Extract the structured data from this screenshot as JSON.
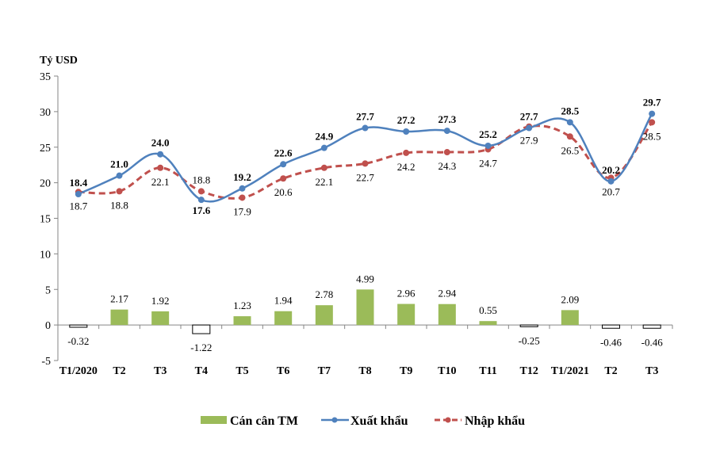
{
  "chart_data": {
    "type": "line",
    "ylabel": "Tỷ USD",
    "ylim": [
      -5,
      35
    ],
    "yticks": [
      -5,
      0,
      5,
      10,
      15,
      20,
      25,
      30,
      35
    ],
    "grid": false,
    "legend_position": "bottom",
    "categories": [
      "T1/2020",
      "T2",
      "T3",
      "T4",
      "T5",
      "T6",
      "T7",
      "T8",
      "T9",
      "T10",
      "T11",
      "T12",
      "T1/2021",
      "T2",
      "T3"
    ],
    "series": [
      {
        "name": "Cán cân TM",
        "kind": "bar",
        "color": "#9bbb59",
        "values": [
          -0.32,
          2.17,
          1.92,
          -1.22,
          1.23,
          1.94,
          2.78,
          4.99,
          2.96,
          2.94,
          0.55,
          -0.25,
          2.09,
          -0.46,
          -0.46
        ],
        "labels": [
          "-0.32",
          "2.17",
          "1.92",
          "-1.22",
          "1.23",
          "1.94",
          "2.78",
          "4.99",
          "2.96",
          "2.94",
          "0.55",
          "-0.25",
          "2.09",
          "-0.46",
          "-0.46"
        ]
      },
      {
        "name": "Xuất khẩu",
        "kind": "line",
        "color": "#4f81bd",
        "values": [
          18.4,
          21.0,
          24.0,
          17.6,
          19.2,
          22.6,
          24.9,
          27.7,
          27.2,
          27.3,
          25.2,
          27.7,
          28.5,
          20.2,
          29.7
        ],
        "labels": [
          "18.4",
          "21.0",
          "24.0",
          "17.6",
          "19.2",
          "22.6",
          "24.9",
          "27.7",
          "27.2",
          "27.3",
          "25.2",
          "27.7",
          "28.5",
          "20.2",
          "29.7"
        ]
      },
      {
        "name": "Nhập khẩu",
        "kind": "dashed-line",
        "color": "#c0504d",
        "values": [
          18.7,
          18.8,
          22.1,
          18.8,
          17.9,
          20.6,
          22.1,
          22.7,
          24.2,
          24.3,
          24.7,
          27.9,
          26.5,
          20.7,
          28.5
        ],
        "labels": [
          "18.7",
          "18.8",
          "22.1",
          "18.8",
          "17.9",
          "20.6",
          "22.1",
          "22.7",
          "24.2",
          "24.3",
          "24.7",
          "27.9",
          "26.5",
          "20.7",
          "28.5"
        ]
      }
    ]
  }
}
